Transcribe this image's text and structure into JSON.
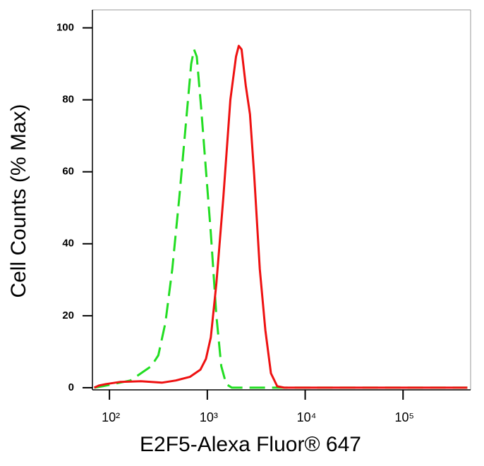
{
  "chart_data": {
    "type": "line",
    "xlabel": "E2F5-Alexa Fluor® 647",
    "ylabel": "Cell Counts (% Max)",
    "xscale": "log",
    "xlim": [
      67,
      490000
    ],
    "ylim": [
      -0.6,
      105
    ],
    "xticks": [
      {
        "value": 100,
        "label": "10²"
      },
      {
        "value": 1000,
        "label": "10³"
      },
      {
        "value": 10000,
        "label": "10⁴"
      },
      {
        "value": 100000,
        "label": "10⁵"
      }
    ],
    "yticks": [
      0,
      20,
      40,
      60,
      80,
      100
    ],
    "series": [
      {
        "color": "#22dd22",
        "dash": "dashed",
        "x": [
          70,
          85,
          109,
          164,
          210,
          268,
          316,
          373,
          439,
          518,
          611,
          685,
          731,
          781,
          863,
          952,
          1086,
          1239,
          1389,
          1560,
          1778,
          5623,
          454000
        ],
        "values": [
          0,
          0.4,
          1,
          2,
          4,
          6,
          9,
          18,
          33,
          53,
          75,
          90,
          94,
          92,
          78,
          63,
          43,
          20,
          6,
          1,
          0,
          0,
          0
        ]
      },
      {
        "color": "#ee1111",
        "dash": "solid",
        "x": [
          70,
          78,
          92,
          128,
          210,
          343,
          477,
          663,
          849,
          968,
          1086,
          1239,
          1459,
          1720,
          1963,
          2095,
          2239,
          2471,
          2728,
          3012,
          3434,
          3917,
          4467,
          5179,
          6105,
          454000
        ],
        "values": [
          0,
          0.6,
          1,
          1.6,
          1.8,
          1.4,
          2,
          3,
          5,
          8,
          14,
          29,
          53,
          80,
          92,
          95,
          94,
          84,
          76,
          59,
          33,
          16,
          4,
          0.4,
          0,
          0
        ]
      }
    ]
  }
}
